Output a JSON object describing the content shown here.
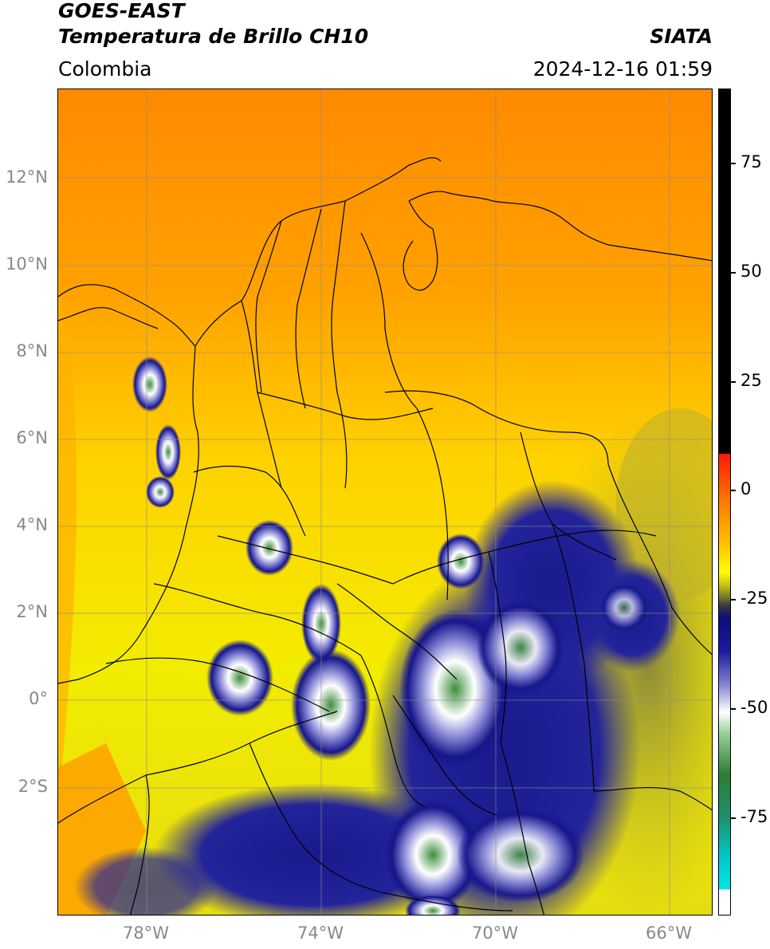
{
  "header": {
    "satellite": "GOES-EAST",
    "product": "Temperatura de Brillo CH10",
    "region": "Colombia",
    "source": "SIATA",
    "datetime": "2024-12-16 01:59"
  },
  "latitude_labels": [
    "12°N",
    "10°N",
    "8°N",
    "6°N",
    "4°N",
    "2°N",
    "0°",
    "2°S"
  ],
  "longitude_labels": [
    "78°W",
    "74°W",
    "70°W",
    "66°W"
  ],
  "colorbar": {
    "ticks": [
      "75",
      "50",
      "25",
      "0",
      "-25",
      "-50",
      "-75"
    ],
    "colors": {
      "warm_cap": "#000000",
      "red": "#ff1a00",
      "orange": "#ff9a00",
      "yellow": "#ffff00",
      "olive": "#8a8a1e",
      "navy": "#0d0d7a",
      "white": "#ffffff",
      "green": "#2e7d32",
      "cyan": "#00e5e5"
    }
  },
  "map": {
    "background_colors": {
      "ocean_north": "#ff9a00",
      "plains": "#ffd000",
      "andes": "#f4ee00",
      "convection_navy": "#14148a",
      "convection_core": "#ffffff",
      "cold_tops": "#3f8f3f",
      "amazon_olive": "#b0a82a"
    }
  }
}
